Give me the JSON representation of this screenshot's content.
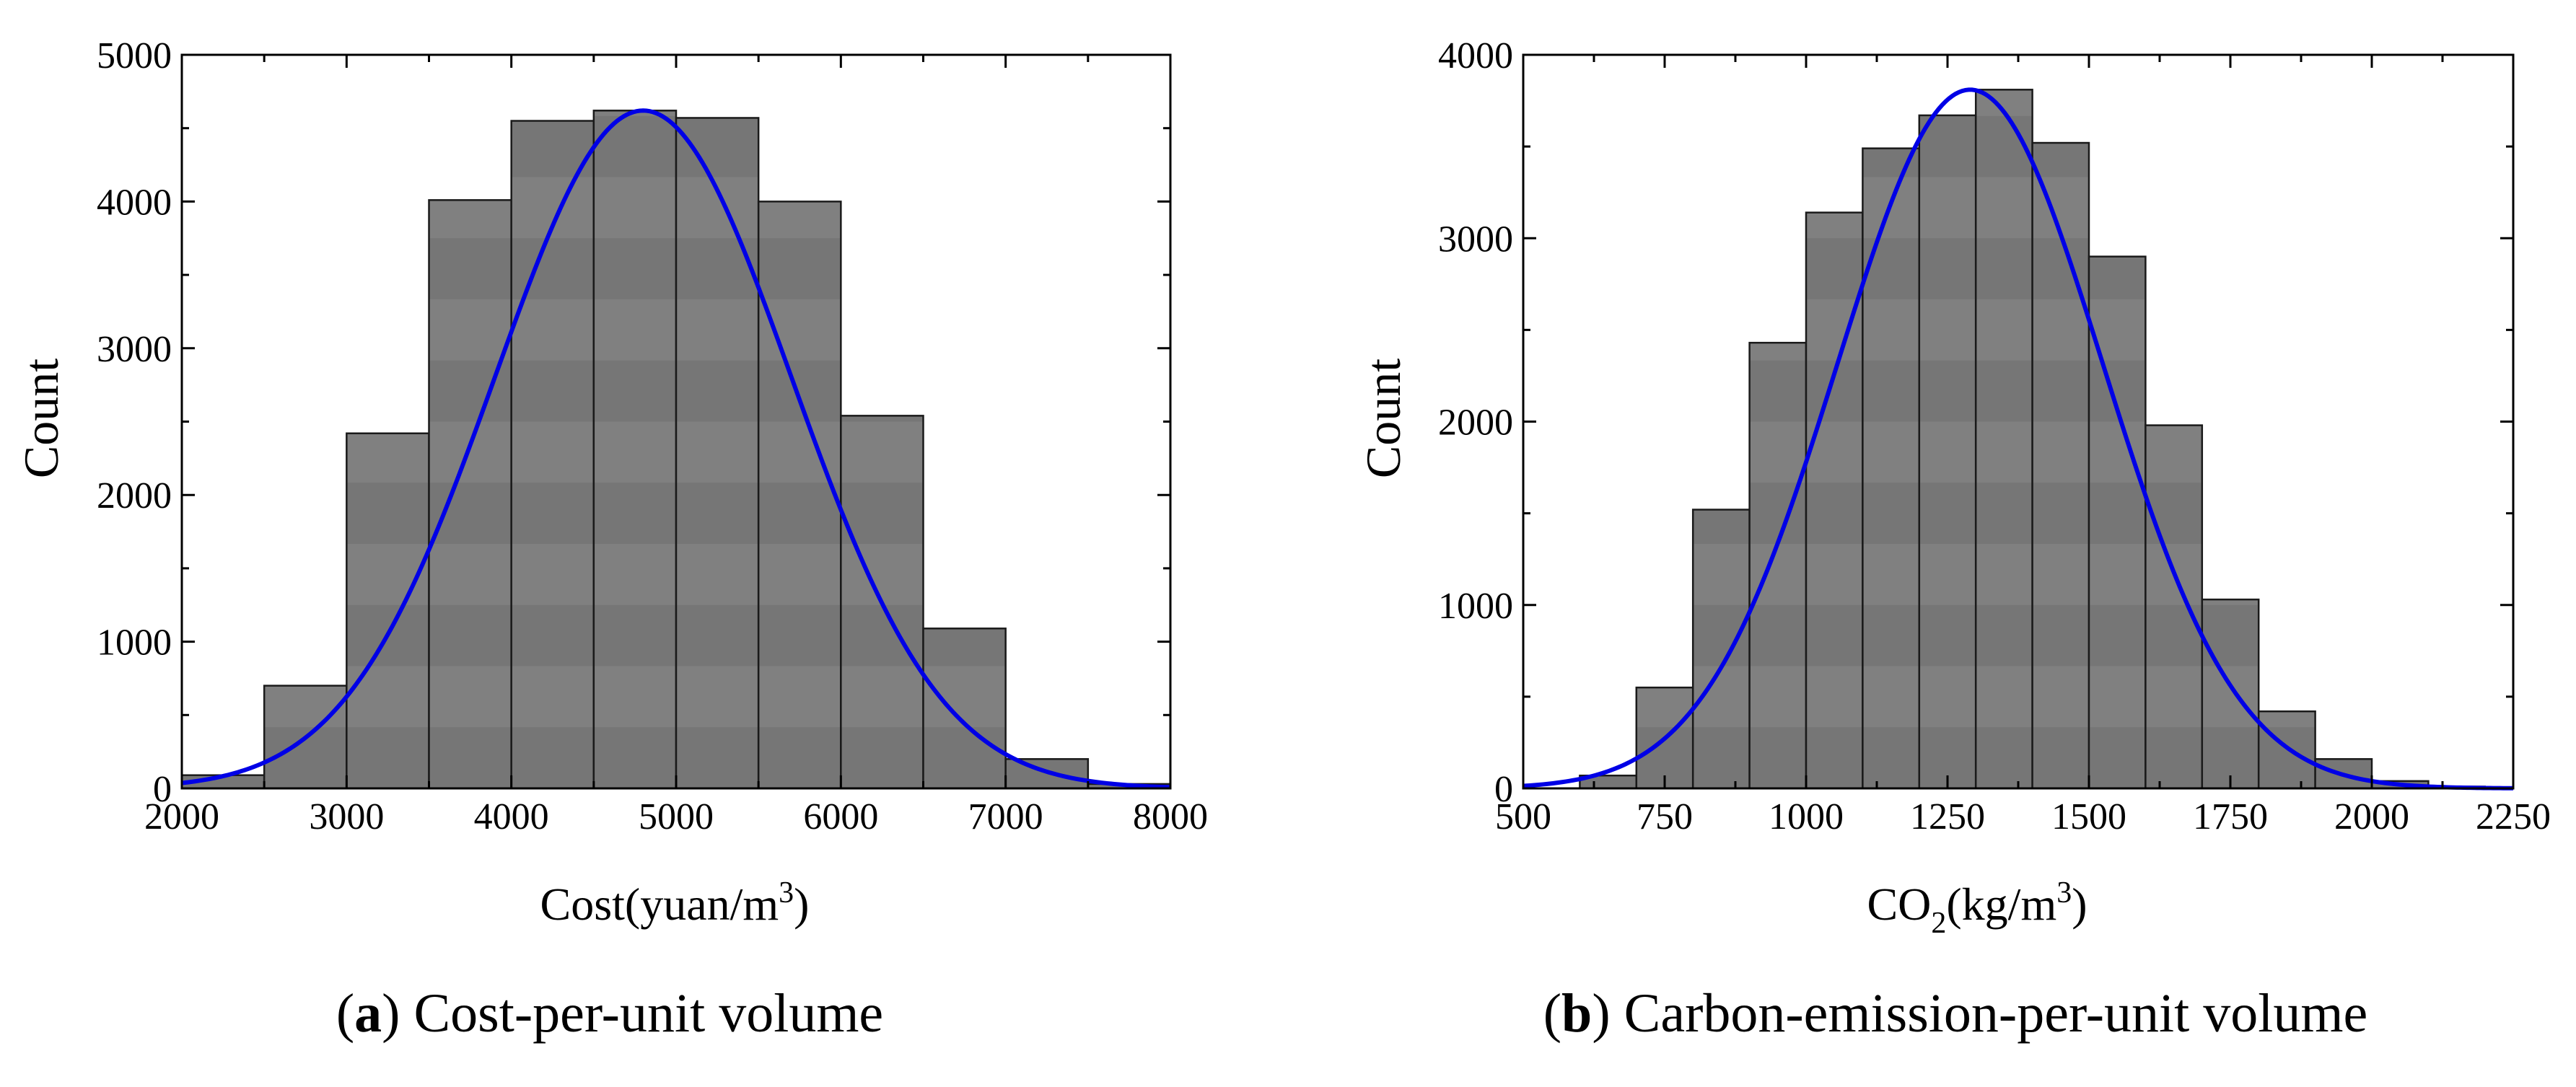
{
  "colors": {
    "bar_fill": "#808080",
    "bar_band": "#6e6e6e",
    "bar_stroke": "#1a1a1a",
    "fit_curve": "#0000e6",
    "axis": "#000000"
  },
  "chart_data": [
    {
      "type": "bar",
      "kind": "histogram",
      "ylabel": "Count",
      "xlabel_main": "Cost(yuan/m",
      "xlabel_sup": "3",
      "xlabel_tail": ")",
      "caption_letter": "a",
      "caption_text": " Cost-per-unit volume",
      "xlim": [
        2000,
        8000
      ],
      "ylim": [
        0,
        5000
      ],
      "x_ticks": [
        2000,
        3000,
        4000,
        5000,
        6000,
        7000,
        8000
      ],
      "x_tick_labels": [
        "2000",
        "3000",
        "4000",
        "5000",
        "6000",
        "7000",
        "8000"
      ],
      "y_ticks": [
        0,
        1000,
        2000,
        3000,
        4000,
        5000
      ],
      "y_tick_labels": [
        "0",
        "1000",
        "2000",
        "3000",
        "4000",
        "5000"
      ],
      "bin_edges": [
        2000,
        2500,
        3000,
        3500,
        4000,
        4500,
        5000,
        5500,
        6000,
        6500,
        7000,
        7500,
        8000
      ],
      "counts": [
        90,
        700,
        2420,
        4010,
        4550,
        4620,
        4570,
        4000,
        2540,
        1090,
        200,
        30
      ],
      "fit": {
        "type": "normal",
        "mean": 4800,
        "sd": 900,
        "peak": 4620
      }
    },
    {
      "type": "bar",
      "kind": "histogram",
      "ylabel": "Count",
      "xlabel_main": "CO",
      "xlabel_sub": "2",
      "xlabel_mid": "(kg/m",
      "xlabel_sup": "3",
      "xlabel_tail": ")",
      "caption_letter": "b",
      "caption_text": " Carbon-emission-per-unit volume",
      "xlim": [
        500,
        2250
      ],
      "ylim": [
        0,
        4000
      ],
      "x_ticks": [
        500,
        750,
        1000,
        1250,
        1500,
        1750,
        2000,
        2250
      ],
      "x_tick_labels": [
        "500",
        "750",
        "1000",
        "1250",
        "1500",
        "1750",
        "2000",
        "2250"
      ],
      "y_ticks": [
        0,
        1000,
        2000,
        3000,
        4000
      ],
      "y_tick_labels": [
        "0",
        "1000",
        "2000",
        "3000",
        "4000"
      ],
      "bin_edges": [
        600,
        700,
        800,
        900,
        1000,
        1100,
        1200,
        1300,
        1400,
        1500,
        1600,
        1700,
        1800,
        1900,
        2000,
        2100,
        2200
      ],
      "counts": [
        70,
        550,
        1520,
        2430,
        3140,
        3490,
        3670,
        3810,
        3520,
        2900,
        1980,
        1030,
        420,
        160,
        40,
        10
      ],
      "fit": {
        "type": "normal",
        "mean": 1290,
        "sd": 235,
        "peak": 3810
      }
    }
  ]
}
